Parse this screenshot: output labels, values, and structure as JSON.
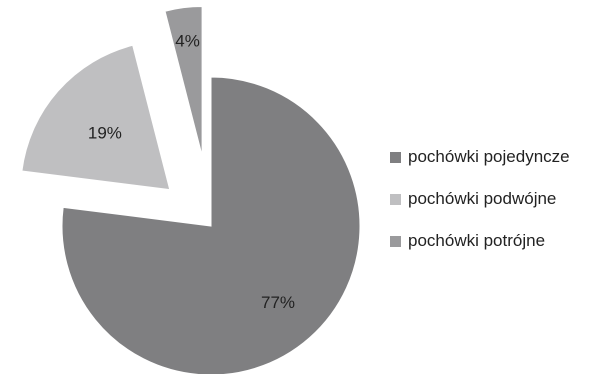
{
  "chart_data": {
    "type": "pie",
    "title": "",
    "legend_position": "right",
    "exploded": true,
    "start_angle_deg": 0,
    "direction": "clockwise",
    "slices": [
      {
        "name": "pochówki pojedyncze",
        "value": 77,
        "label": "77%",
        "color": "#7f7f81"
      },
      {
        "name": "pochówki podwójne",
        "value": 19,
        "label": "19%",
        "color": "#bfbfc1"
      },
      {
        "name": "pochówki potrójne",
        "value": 4,
        "label": "4%",
        "color": "#9a9a9c"
      }
    ]
  }
}
